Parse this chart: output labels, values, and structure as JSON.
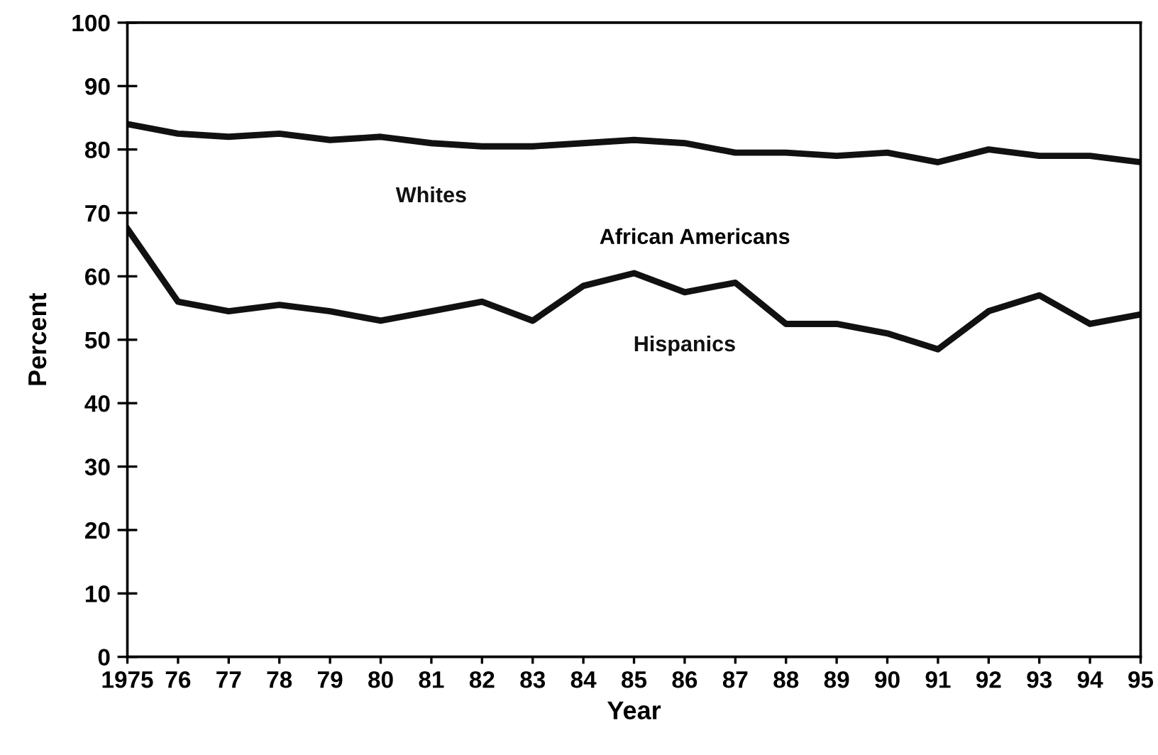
{
  "chart_data": {
    "type": "line",
    "xlabel": "Year",
    "ylabel": "Percent",
    "x": [
      1975,
      1976,
      1977,
      1978,
      1979,
      1980,
      1981,
      1982,
      1983,
      1984,
      1985,
      1986,
      1987,
      1988,
      1989,
      1990,
      1991,
      1992,
      1993,
      1994,
      1995
    ],
    "series": [
      {
        "name": "Whites",
        "color": "#111111",
        "values": [
          84,
          82.5,
          82,
          82.5,
          81.5,
          82,
          81,
          80.5,
          80.5,
          81,
          81.5,
          81,
          79.5,
          79.5,
          79,
          79.5,
          78,
          80,
          79,
          79,
          78
        ]
      },
      {
        "name": "Hispanics",
        "color": "#111111",
        "values": [
          67.5,
          56,
          54.5,
          55.5,
          54.5,
          53,
          54.5,
          56,
          53,
          58.5,
          60.5,
          57.5,
          59,
          52.5,
          52.5,
          51,
          48.5,
          54.5,
          57,
          52.5,
          54
        ]
      }
    ],
    "annotations": [
      "African Americans"
    ],
    "xlim": [
      1975,
      1995
    ],
    "ylim": [
      0,
      100
    ],
    "xticks": [
      1975,
      {
        "value": 1976,
        "label": "76"
      },
      {
        "value": 1977,
        "label": "77"
      },
      {
        "value": 1978,
        "label": "78"
      },
      {
        "value": 1979,
        "label": "79"
      },
      {
        "value": 1980,
        "label": "80"
      },
      {
        "value": 1981,
        "label": "81"
      },
      {
        "value": 1982,
        "label": "82"
      },
      {
        "value": 1983,
        "label": "83"
      },
      {
        "value": 1984,
        "label": "84"
      },
      {
        "value": 1985,
        "label": "85"
      },
      {
        "value": 1986,
        "label": "86"
      },
      {
        "value": 1987,
        "label": "87"
      },
      {
        "value": 1988,
        "label": "88"
      },
      {
        "value": 1989,
        "label": "89"
      },
      {
        "value": 1990,
        "label": "90"
      },
      {
        "value": 1991,
        "label": "91"
      },
      {
        "value": 1992,
        "label": "92"
      },
      {
        "value": 1993,
        "label": "93"
      },
      {
        "value": 1994,
        "label": "94"
      },
      {
        "value": 1995,
        "label": "95"
      }
    ],
    "yticks": [
      0,
      10,
      20,
      30,
      40,
      50,
      60,
      70,
      80,
      90,
      100
    ],
    "grid": false,
    "legend": false,
    "marker": "none",
    "line_style": "solid"
  }
}
